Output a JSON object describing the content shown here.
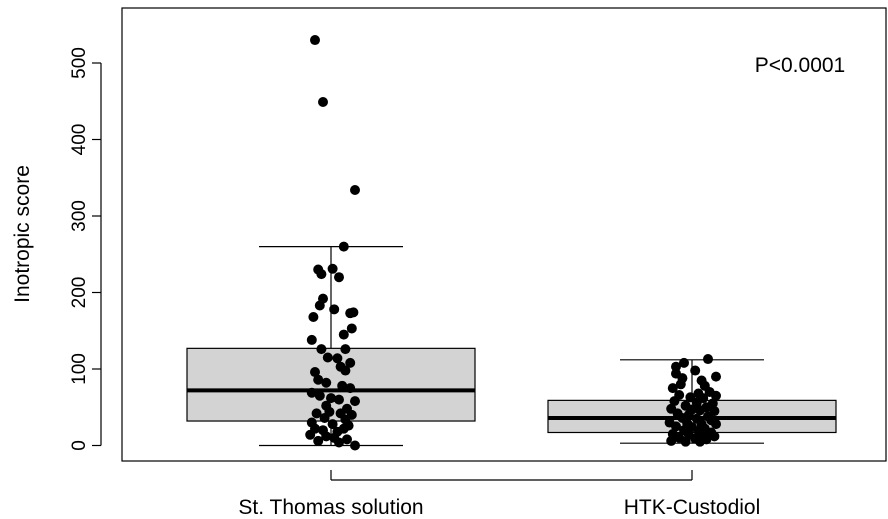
{
  "chart_data": {
    "type": "box",
    "ylabel": "Inotropic score",
    "xlabel": "",
    "ylim": [
      -20,
      570
    ],
    "yticks": [
      0,
      100,
      200,
      300,
      400,
      500
    ],
    "categories": [
      "St. Thomas solution",
      "HTK-Custodiol"
    ],
    "annotation": "P<0.0001",
    "box_fill": "#d3d3d3",
    "point_color": "#000000",
    "boxes": [
      {
        "name": "St. Thomas solution",
        "whisker_low": 0,
        "q1": 32,
        "median": 72,
        "q3": 127,
        "whisker_high": 260,
        "points": [
          [
            -0.1,
            530
          ],
          [
            -0.05,
            449
          ],
          [
            0.15,
            334
          ],
          [
            0.08,
            260
          ],
          [
            -0.08,
            230
          ],
          [
            0.01,
            231
          ],
          [
            -0.06,
            224
          ],
          [
            0.05,
            220
          ],
          [
            -0.05,
            192
          ],
          [
            -0.07,
            183
          ],
          [
            0.02,
            178
          ],
          [
            0.12,
            173
          ],
          [
            0.14,
            174
          ],
          [
            -0.11,
            168
          ],
          [
            0.13,
            153
          ],
          [
            0.08,
            145
          ],
          [
            -0.12,
            138
          ],
          [
            -0.06,
            126
          ],
          [
            0.09,
            126
          ],
          [
            -0.02,
            115
          ],
          [
            0.04,
            114
          ],
          [
            0.06,
            103
          ],
          [
            0.12,
            108
          ],
          [
            0.09,
            98
          ],
          [
            -0.1,
            96
          ],
          [
            -0.08,
            86
          ],
          [
            -0.03,
            82
          ],
          [
            0.07,
            78
          ],
          [
            0.12,
            75
          ],
          [
            -0.12,
            69
          ],
          [
            -0.07,
            65
          ],
          [
            0.0,
            62
          ],
          [
            0.05,
            60
          ],
          [
            0.15,
            58
          ],
          [
            -0.03,
            52
          ],
          [
            0.1,
            48
          ],
          [
            -0.09,
            42
          ],
          [
            -0.01,
            44
          ],
          [
            0.06,
            42
          ],
          [
            0.13,
            40
          ],
          [
            -0.04,
            36
          ],
          [
            0.09,
            34
          ],
          [
            -0.12,
            30
          ],
          [
            0.01,
            28
          ],
          [
            0.11,
            26
          ],
          [
            -0.1,
            22
          ],
          [
            -0.05,
            20
          ],
          [
            0.04,
            18
          ],
          [
            0.08,
            22
          ],
          [
            -0.13,
            14
          ],
          [
            -0.03,
            12
          ],
          [
            0.02,
            10
          ],
          [
            0.1,
            8
          ],
          [
            -0.08,
            6
          ],
          [
            0.05,
            4
          ],
          [
            0.15,
            0
          ]
        ]
      },
      {
        "name": "HTK-Custodiol",
        "whisker_low": 3,
        "q1": 17,
        "median": 36,
        "q3": 59,
        "whisker_high": 112,
        "points": [
          [
            0.1,
            113
          ],
          [
            -0.05,
            108
          ],
          [
            -0.1,
            103
          ],
          [
            0.02,
            98
          ],
          [
            -0.1,
            94
          ],
          [
            0.15,
            90
          ],
          [
            -0.06,
            88
          ],
          [
            0.06,
            85
          ],
          [
            -0.07,
            80
          ],
          [
            0.08,
            78
          ],
          [
            0.11,
            70
          ],
          [
            -0.12,
            75
          ],
          [
            0.04,
            68
          ],
          [
            -0.08,
            66
          ],
          [
            0.15,
            65
          ],
          [
            -0.01,
            63
          ],
          [
            0.07,
            62
          ],
          [
            -0.11,
            58
          ],
          [
            0.03,
            56
          ],
          [
            0.13,
            55
          ],
          [
            -0.04,
            52
          ],
          [
            0.09,
            50
          ],
          [
            -0.13,
            48
          ],
          [
            0.0,
            47
          ],
          [
            0.05,
            46
          ],
          [
            0.14,
            45
          ],
          [
            -0.09,
            42
          ],
          [
            -0.02,
            40
          ],
          [
            0.1,
            38
          ],
          [
            -0.06,
            36
          ],
          [
            0.03,
            35
          ],
          [
            0.12,
            33
          ],
          [
            -0.14,
            30
          ],
          [
            -0.03,
            29
          ],
          [
            0.06,
            28
          ],
          [
            0.15,
            28
          ],
          [
            -0.1,
            25
          ],
          [
            0.0,
            24
          ],
          [
            0.08,
            22
          ],
          [
            -0.05,
            20
          ],
          [
            0.04,
            19
          ],
          [
            0.12,
            17
          ],
          [
            -0.12,
            15
          ],
          [
            -0.02,
            14
          ],
          [
            0.07,
            13
          ],
          [
            0.14,
            12
          ],
          [
            -0.08,
            10
          ],
          [
            0.02,
            9
          ],
          [
            0.09,
            8
          ],
          [
            -0.13,
            6
          ],
          [
            -0.04,
            5
          ],
          [
            0.05,
            5
          ]
        ]
      }
    ]
  }
}
